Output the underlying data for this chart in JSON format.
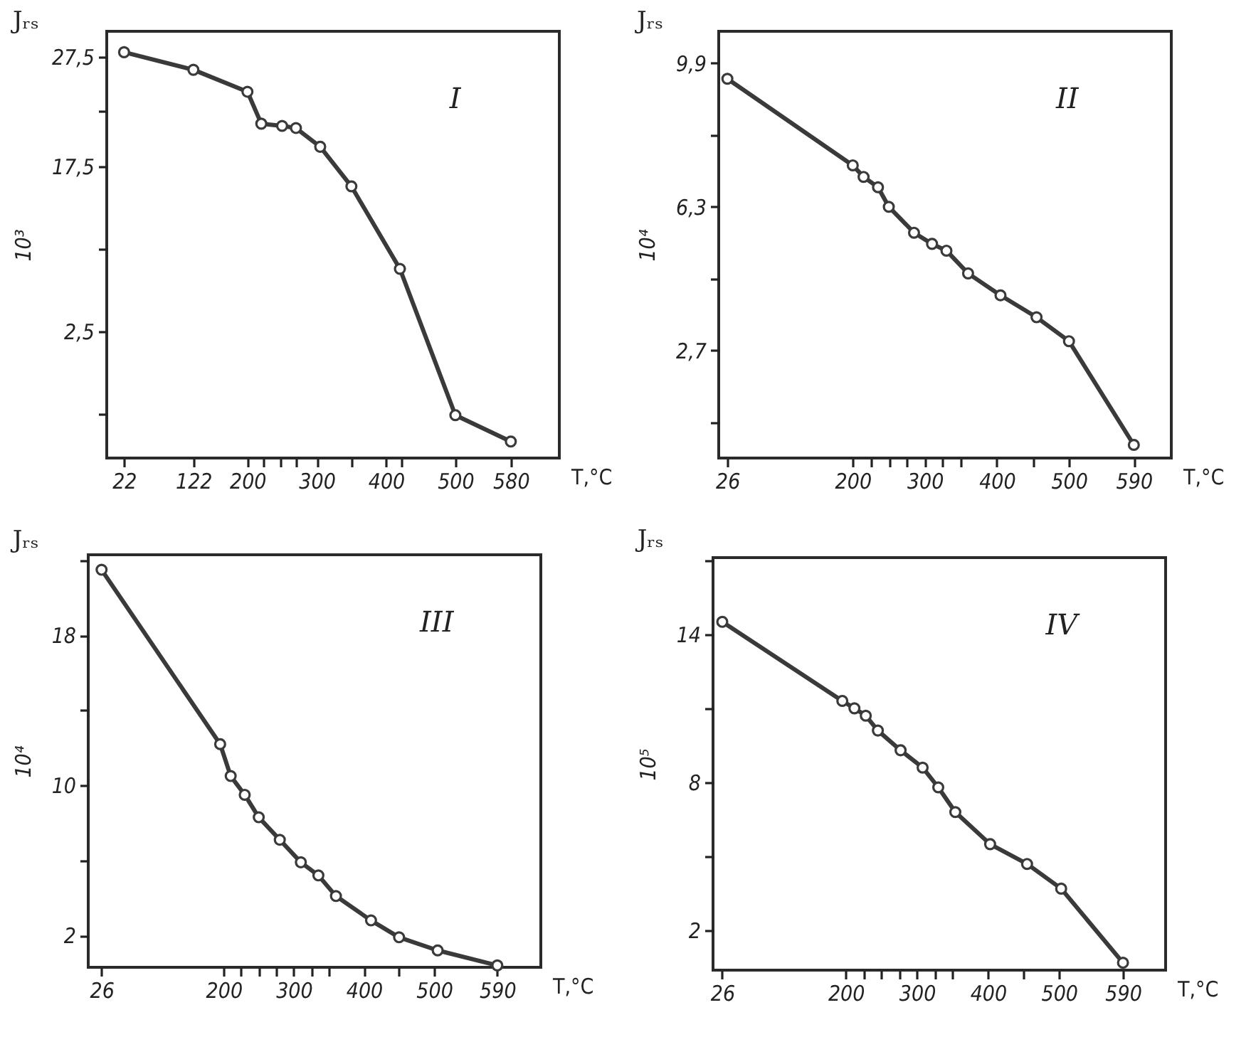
{
  "chart_data": [
    {
      "type": "line",
      "title": "Jᵣₛ",
      "ylabel": "10³",
      "xlabel": "T,°C",
      "annotations": [
        "I"
      ],
      "marker": "circle",
      "x": [
        22,
        122,
        200,
        220,
        250,
        270,
        305,
        350,
        420,
        500,
        580
      ],
      "series": [
        {
          "color": "#3a3a3a",
          "values": [
            27.9,
            26.3,
            24.3,
            21.4,
            21.2,
            21.0,
            19.3,
            15.7,
            8.2,
            -5.1,
            -7.5
          ]
        }
      ],
      "xlim": [
        -3,
        650
      ],
      "xticks": [
        22,
        122,
        200,
        {
          "value": 222,
          "label": null
        },
        {
          "value": 248,
          "label": null
        },
        {
          "value": 271,
          "label": null
        },
        300,
        {
          "value": 350,
          "label": null
        },
        400,
        {
          "value": 422,
          "label": null
        },
        500,
        580
      ],
      "ylim": [
        -9,
        29.8
      ],
      "yticks": [
        {
          "value": 27.5,
          "label": "27,5"
        },
        {
          "value": 22.5,
          "label": null
        },
        {
          "value": 17.5,
          "label": "17,5"
        },
        {
          "value": 10,
          "label": null
        },
        {
          "value": 2.5,
          "label": "2,5"
        },
        {
          "value": -5,
          "label": null
        }
      ]
    },
    {
      "type": "line",
      "title": "Jᵣₛ",
      "ylabel": "10⁴",
      "xlabel": "T,°C",
      "annotations": [
        "II"
      ],
      "marker": "circle",
      "x": [
        26,
        200,
        215,
        235,
        250,
        285,
        310,
        330,
        360,
        405,
        455,
        500,
        590
      ],
      "series": [
        {
          "color": "#3a3a3a",
          "values": [
            9.51,
            7.34,
            7.05,
            6.79,
            6.3,
            5.65,
            5.37,
            5.2,
            4.63,
            4.08,
            3.53,
            2.93,
            0.33
          ]
        }
      ],
      "xlim": [
        14,
        642
      ],
      "xticks": [
        26,
        200,
        {
          "value": 225,
          "label": null
        },
        {
          "value": 250,
          "label": null
        },
        {
          "value": 275,
          "label": null
        },
        300,
        {
          "value": 325,
          "label": null
        },
        {
          "value": 350,
          "label": null
        },
        400,
        {
          "value": 450,
          "label": null
        },
        500,
        590
      ],
      "ylim": [
        0,
        10.7
      ],
      "yticks": [
        {
          "value": 9.9,
          "label": "9,9"
        },
        {
          "value": 8.1,
          "label": null
        },
        {
          "value": 6.3,
          "label": "6,3"
        },
        {
          "value": 4.5,
          "label": null
        },
        {
          "value": 2.7,
          "label": "2,7"
        },
        {
          "value": 0.9,
          "label": null
        }
      ]
    },
    {
      "type": "line",
      "title": "Jᵣₛ",
      "ylabel": "10⁴",
      "xlabel": "T,°C",
      "annotations": [
        "III"
      ],
      "marker": "circle",
      "x": [
        26,
        195,
        210,
        230,
        250,
        280,
        310,
        335,
        360,
        410,
        450,
        505,
        590
      ],
      "series": [
        {
          "color": "#3a3a3a",
          "values": [
            21.5,
            12.2,
            10.5,
            9.5,
            8.3,
            7.1,
            5.9,
            5.2,
            4.1,
            2.8,
            1.9,
            1.2,
            0.4
          ]
        }
      ],
      "xlim": [
        7,
        652
      ],
      "xticks": [
        26,
        200,
        {
          "value": 225,
          "label": null
        },
        {
          "value": 250,
          "label": null
        },
        {
          "value": 275,
          "label": null
        },
        300,
        {
          "value": 325,
          "label": null
        },
        {
          "value": 350,
          "label": null
        },
        400,
        {
          "value": 450,
          "label": null
        },
        500,
        590
      ],
      "ylim": [
        0.3,
        22.3
      ],
      "yticks": [
        {
          "value": 22,
          "label": null
        },
        18,
        {
          "value": 14,
          "label": null
        },
        10,
        {
          "value": 6,
          "label": null
        },
        2
      ]
    },
    {
      "type": "line",
      "title": "Jᵣₛ",
      "ylabel": "10⁵",
      "xlabel": "T,°C",
      "annotations": [
        "IV"
      ],
      "marker": "circle",
      "x": [
        26,
        195,
        212,
        228,
        245,
        277,
        308,
        330,
        354,
        403,
        455,
        503,
        590
      ],
      "series": [
        {
          "color": "#3a3a3a",
          "values": [
            14.5,
            11.3,
            11.0,
            10.7,
            10.1,
            9.3,
            8.6,
            7.8,
            6.8,
            5.5,
            4.7,
            3.7,
            0.7
          ]
        }
      ],
      "xlim": [
        13,
        650
      ],
      "xticks": [
        26,
        200,
        {
          "value": 225,
          "label": null
        },
        {
          "value": 250,
          "label": null
        },
        {
          "value": 275,
          "label": null
        },
        300,
        {
          "value": 325,
          "label": null
        },
        {
          "value": 350,
          "label": null
        },
        400,
        {
          "value": 450,
          "label": null
        },
        500,
        590
      ],
      "ylim": [
        0.4,
        17.1
      ],
      "yticks": [
        {
          "value": 17,
          "label": null
        },
        14,
        {
          "value": 11,
          "label": null
        },
        8,
        {
          "value": 5,
          "label": null
        },
        2
      ]
    }
  ]
}
